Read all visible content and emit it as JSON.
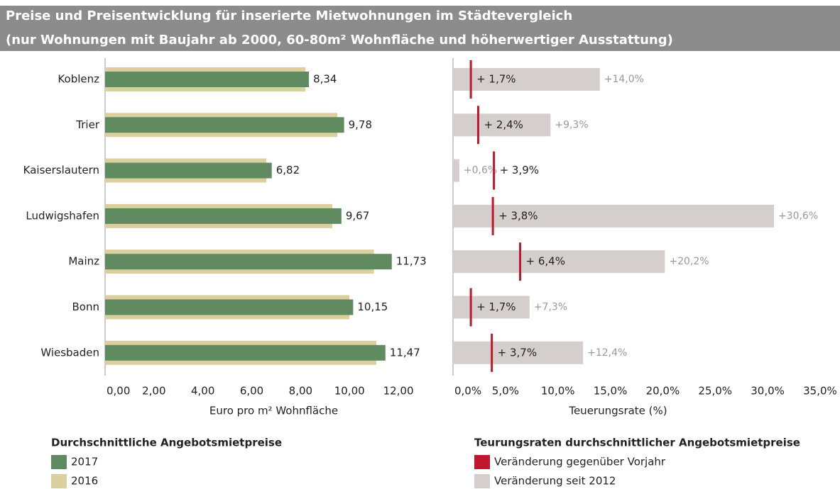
{
  "title": "Preise und Preisentwicklung für inserierte Mietwohnungen im Städtevergleich",
  "subtitle": "(nur Wohnungen mit Baujahr ab 2000, 60-80m² Wohnfläche und höherwertiger Ausstattung)",
  "chart_data": [
    {
      "type": "bar",
      "orientation": "horizontal",
      "categories": [
        "Koblenz",
        "Trier",
        "Kaiserslautern",
        "Ludwigshafen",
        "Mainz",
        "Bonn",
        "Wiesbaden"
      ],
      "series": [
        {
          "name": "2017",
          "color": "#608a5f",
          "values": [
            8.34,
            9.78,
            6.82,
            9.67,
            11.73,
            10.15,
            11.47
          ],
          "value_labels": [
            "8,34",
            "9,78",
            "6,82",
            "9,67",
            "11,73",
            "10,15",
            "11,47"
          ]
        },
        {
          "name": "2016",
          "color": "#d9cf9f",
          "values": [
            8.2,
            9.5,
            6.6,
            9.3,
            11.0,
            10.0,
            11.1
          ]
        }
      ],
      "xlim": [
        0,
        13.8
      ],
      "xticks": [
        {
          "value": 0,
          "label": "0,00"
        },
        {
          "value": 2,
          "label": "2,00"
        },
        {
          "value": 4,
          "label": "4,00"
        },
        {
          "value": 6,
          "label": "6,00"
        },
        {
          "value": 8,
          "label": "8,00"
        },
        {
          "value": 10,
          "label": "10,00"
        },
        {
          "value": 12,
          "label": "12,00"
        }
      ],
      "xlabel": "Euro pro m² Wohnfläche",
      "legend_title": "Durchschnittliche Angebotsmietpreise"
    },
    {
      "type": "bar",
      "orientation": "horizontal",
      "series": [
        {
          "name": "Veränderung gegenüber Vorjahr",
          "color": "#c0172e",
          "mark": "tick",
          "values": [
            1.7,
            2.4,
            3.9,
            3.8,
            6.4,
            1.7,
            3.7
          ],
          "value_labels": [
            "+ 1,7%",
            "+ 2,4%",
            "+ 3,9%",
            "+ 3,8%",
            "+ 6,4%",
            "+ 1,7%",
            "+ 3,7%"
          ]
        },
        {
          "name": "Veränderung seit 2012",
          "color": "#d4cfcc",
          "mark": "bar",
          "values": [
            14.0,
            9.3,
            0.6,
            30.6,
            20.2,
            7.3,
            12.4
          ],
          "value_labels": [
            "+14,0%",
            "+9,3%",
            "+0,6%",
            "+30,6%",
            "+20,2%",
            "+7,3%",
            "+12,4%"
          ]
        }
      ],
      "xlim": [
        0,
        36.9
      ],
      "xticks": [
        {
          "value": 0,
          "label": "0,0%"
        },
        {
          "value": 5,
          "label": "5,0%"
        },
        {
          "value": 10,
          "label": "10,0%"
        },
        {
          "value": 15,
          "label": "15,0%"
        },
        {
          "value": 20,
          "label": "20,0%"
        },
        {
          "value": 25,
          "label": "25,0%"
        },
        {
          "value": 30,
          "label": "30,0%"
        },
        {
          "value": 35,
          "label": "35,0%"
        }
      ],
      "xlabel": "Teuerungsrate (%)",
      "legend_title": "Teurungsraten durchschnittlicher Angebotsmietpreise"
    }
  ]
}
